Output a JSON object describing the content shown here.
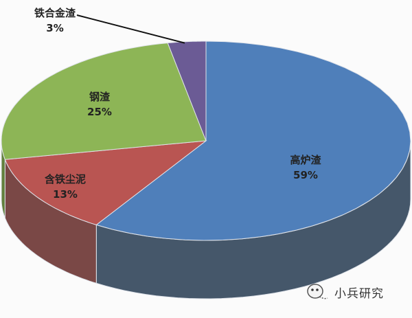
{
  "chart_data": {
    "type": "pie",
    "style": "3d",
    "start": "top",
    "direction": "clockwise",
    "slices": [
      {
        "label": "高炉渣",
        "value": 59,
        "value_label": "59%",
        "color": "#4f7fba",
        "side_color": "#45576a"
      },
      {
        "label": "含铁尘泥",
        "value": 13,
        "value_label": "13%",
        "color": "#b95552",
        "side_color": "#7a4846"
      },
      {
        "label": "钢渣",
        "value": 25,
        "value_label": "25%",
        "color": "#8db556",
        "side_color": "#62803d"
      },
      {
        "label": "铁合金渣",
        "value": 3,
        "value_label": "3%",
        "color": "#6b5b95",
        "side_color": "#4a3f68"
      }
    ]
  },
  "watermark": {
    "text": "小兵研究",
    "icon": "wechat-mascot-icon"
  }
}
